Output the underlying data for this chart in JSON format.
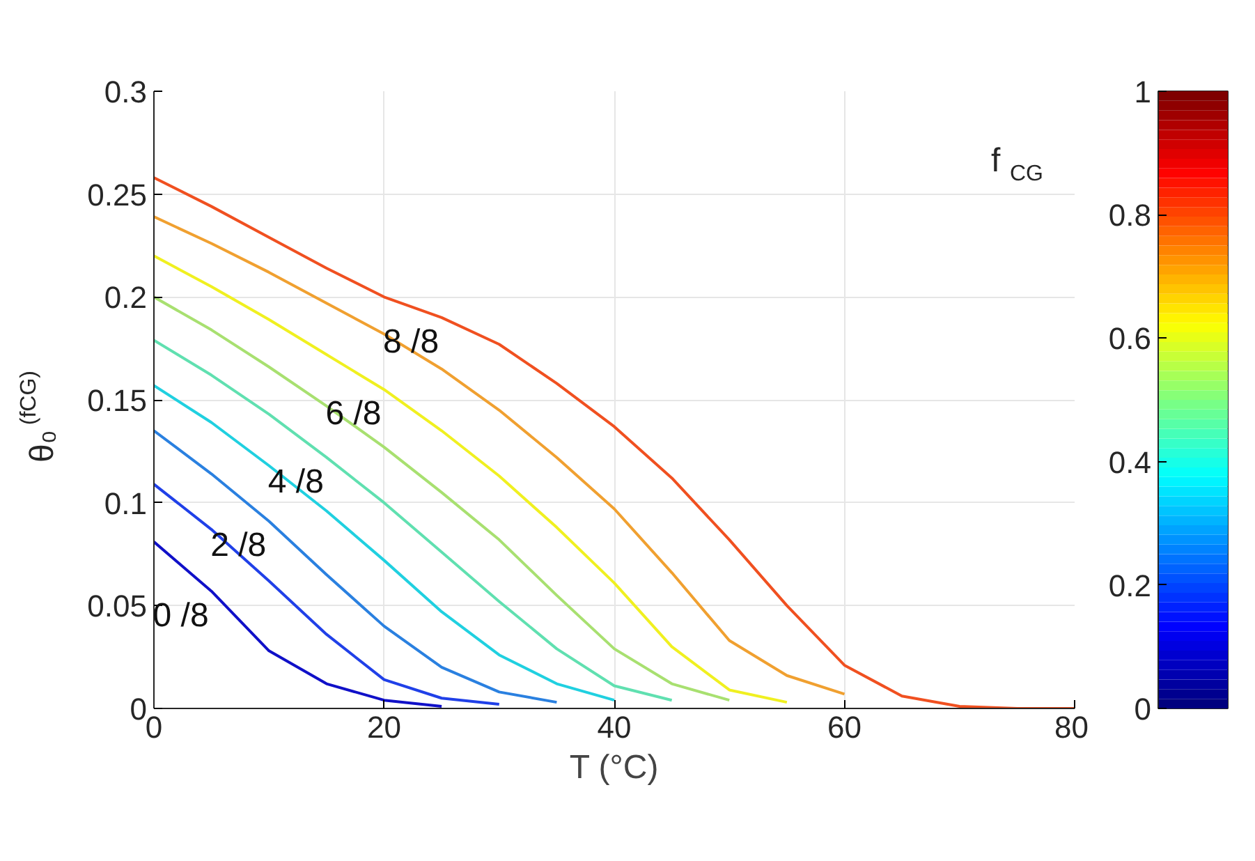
{
  "chart_data": {
    "type": "line",
    "xlabel": "T (°C)",
    "ylabel": "θ₀$^{(fCG)}$",
    "clabel": "f$_{CG}$",
    "x": [
      0,
      5,
      10,
      15,
      20,
      25,
      30,
      35,
      40,
      45,
      50,
      55,
      60,
      65,
      70,
      75,
      80
    ],
    "series": [
      {
        "name": "0 /8",
        "color": "#1010c8",
        "values": [
          0.081,
          0.057,
          0.028,
          0.012,
          0.004,
          0.001,
          null,
          null,
          null,
          null,
          null,
          null,
          null,
          null,
          null,
          null,
          null
        ]
      },
      {
        "color": "#2040e8",
        "values": [
          0.109,
          0.087,
          0.062,
          0.036,
          0.014,
          0.005,
          0.002,
          null,
          null,
          null,
          null,
          null,
          null,
          null,
          null,
          null,
          null
        ]
      },
      {
        "name": "2 /8",
        "color": "#2a80e0",
        "values": [
          0.135,
          0.114,
          0.091,
          0.065,
          0.04,
          0.02,
          0.008,
          0.003,
          null,
          null,
          null,
          null,
          null,
          null,
          null,
          null,
          null
        ]
      },
      {
        "color": "#20d0e0",
        "values": [
          0.157,
          0.139,
          0.118,
          0.096,
          0.072,
          0.047,
          0.026,
          0.012,
          0.004,
          null,
          null,
          null,
          null,
          null,
          null,
          null,
          null
        ]
      },
      {
        "name": "4 /8",
        "color": "#60e0b0",
        "values": [
          0.179,
          0.162,
          0.143,
          0.122,
          0.1,
          0.076,
          0.052,
          0.029,
          0.011,
          0.004,
          null,
          null,
          null,
          null,
          null,
          null,
          null
        ]
      },
      {
        "color": "#a8e070",
        "values": [
          0.2,
          0.184,
          0.166,
          0.147,
          0.127,
          0.105,
          0.082,
          0.055,
          0.029,
          0.012,
          0.004,
          null,
          null,
          null,
          null,
          null,
          null
        ]
      },
      {
        "name": "6 /8",
        "color": "#f0f020",
        "values": [
          0.22,
          0.205,
          0.189,
          0.172,
          0.155,
          0.135,
          0.113,
          0.088,
          0.061,
          0.03,
          0.009,
          0.003,
          null,
          null,
          null,
          null,
          null
        ]
      },
      {
        "color": "#f0a030",
        "values": [
          0.239,
          0.226,
          0.212,
          0.197,
          0.182,
          0.165,
          0.145,
          0.122,
          0.097,
          0.066,
          0.033,
          0.016,
          0.007,
          null,
          null,
          null,
          null
        ]
      },
      {
        "name": "8 /8",
        "color": "#f05020",
        "values": [
          0.258,
          0.244,
          0.229,
          0.214,
          0.2,
          0.19,
          0.177,
          0.158,
          0.137,
          0.112,
          0.082,
          0.05,
          0.021,
          0.006,
          0.001,
          0,
          0
        ]
      }
    ],
    "xlim": [
      0,
      80
    ],
    "xticks": [
      0,
      20,
      40,
      60,
      80
    ],
    "ylim": [
      0,
      0.3
    ],
    "yticks": [
      0,
      0.05,
      0.1,
      0.15,
      0.2,
      0.25,
      0.3
    ],
    "clim": [
      0,
      1
    ],
    "cticks": [
      0,
      0.2,
      0.4,
      0.6,
      0.8,
      1
    ],
    "grid": true,
    "line_style": "solid"
  }
}
